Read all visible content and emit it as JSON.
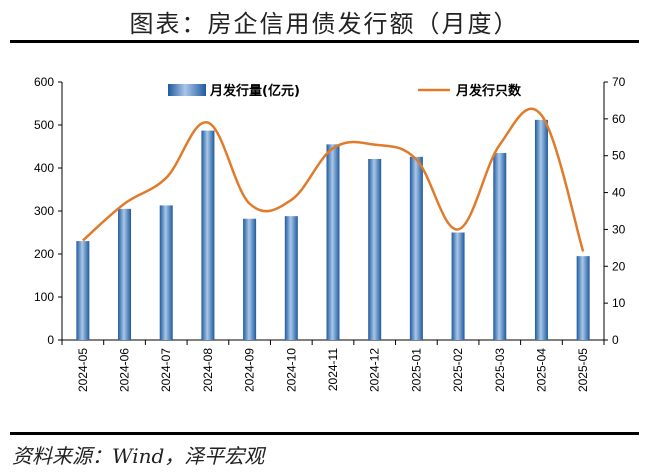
{
  "page": {
    "title": "图表：房企信用债发行额（月度）",
    "source": "资料来源：Wind，泽平宏观"
  },
  "chart_data": {
    "type": "bar",
    "categories": [
      "2024-05",
      "2024-06",
      "2024-07",
      "2024-08",
      "2024-09",
      "2024-10",
      "2024-11",
      "2024-12",
      "2025-01",
      "2025-02",
      "2025-03",
      "2025-04",
      "2025-05"
    ],
    "series": [
      {
        "name": "月发行量(亿元)",
        "type": "bar",
        "axis": "left",
        "values": [
          230,
          305,
          313,
          487,
          282,
          288,
          455,
          421,
          426,
          250,
          435,
          512,
          195
        ]
      },
      {
        "name": "月发行只数",
        "type": "line",
        "axis": "right",
        "values": [
          27,
          37,
          44,
          59,
          37,
          38,
          52,
          53,
          49,
          30,
          53,
          61,
          24
        ]
      }
    ],
    "ylim_left": [
      0,
      600
    ],
    "yticks_left": [
      "0",
      "100",
      "200",
      "300",
      "400",
      "500",
      "600"
    ],
    "ylim_right": [
      0,
      70
    ],
    "yticks_right": [
      "0",
      "10",
      "20",
      "30",
      "40",
      "50",
      "60",
      "70"
    ],
    "legend_position": "top",
    "grid": false,
    "colors": {
      "bar": "#2f6fb5",
      "bar_light": "#a9c7e8",
      "line": "#e07b2b"
    }
  }
}
